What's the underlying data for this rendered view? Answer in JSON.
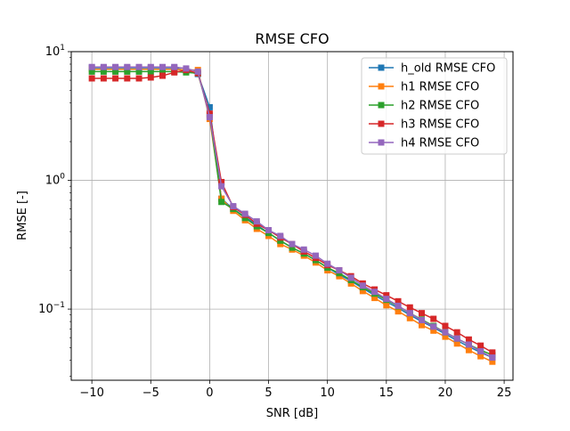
{
  "chart_data": {
    "type": "line",
    "title": "RMSE CFO",
    "xlabel": "SNR [dB]",
    "ylabel": "RMSE [-]",
    "xlim": [
      -11.75,
      25.75
    ],
    "ylim": [
      0.028,
      10
    ],
    "yscale": "log",
    "grid": true,
    "legend_position": "top-right",
    "x_ticks": [
      {
        "value": -10,
        "label": "−10"
      },
      {
        "value": -5,
        "label": "−5"
      },
      {
        "value": 0,
        "label": "0"
      },
      {
        "value": 5,
        "label": "5"
      },
      {
        "value": 10,
        "label": "10"
      },
      {
        "value": 15,
        "label": "15"
      },
      {
        "value": 20,
        "label": "20"
      },
      {
        "value": 25,
        "label": "25"
      }
    ],
    "y_ticks": [
      {
        "value": 0.1,
        "base": "10",
        "exp": "−1"
      },
      {
        "value": 1,
        "base": "10",
        "exp": "0"
      },
      {
        "value": 10,
        "base": "10",
        "exp": "1"
      }
    ],
    "x": [
      -10,
      -9,
      -8,
      -7,
      -6,
      -5,
      -4,
      -3,
      -2,
      -1,
      0,
      1,
      2,
      3,
      4,
      5,
      6,
      7,
      8,
      9,
      10,
      11,
      12,
      13,
      14,
      15,
      16,
      17,
      18,
      19,
      20,
      21,
      22,
      23,
      24
    ],
    "series": [
      {
        "name": "h_old RMSE CFO",
        "color": "#1f77b4",
        "values": [
          7.5,
          7.5,
          7.5,
          7.5,
          7.5,
          7.5,
          7.5,
          7.5,
          7.1,
          6.7,
          3.7,
          0.72,
          0.6,
          0.52,
          0.45,
          0.39,
          0.34,
          0.3,
          0.27,
          0.24,
          0.21,
          0.185,
          0.165,
          0.145,
          0.128,
          0.114,
          0.102,
          0.09,
          0.08,
          0.072,
          0.064,
          0.057,
          0.051,
          0.046,
          0.042
        ]
      },
      {
        "name": "h1 RMSE CFO",
        "color": "#ff7f0e",
        "values": [
          7.3,
          7.3,
          7.3,
          7.3,
          7.3,
          7.3,
          7.3,
          7.3,
          7.2,
          7.2,
          3.0,
          0.72,
          0.58,
          0.49,
          0.42,
          0.37,
          0.32,
          0.29,
          0.26,
          0.23,
          0.2,
          0.18,
          0.158,
          0.138,
          0.122,
          0.107,
          0.096,
          0.085,
          0.075,
          0.068,
          0.061,
          0.054,
          0.048,
          0.043,
          0.039
        ]
      },
      {
        "name": "h2 RMSE CFO",
        "color": "#2ca02c",
        "values": [
          7.0,
          7.0,
          7.0,
          7.0,
          7.0,
          7.0,
          7.0,
          7.0,
          6.9,
          6.8,
          3.2,
          0.68,
          0.6,
          0.51,
          0.44,
          0.39,
          0.34,
          0.3,
          0.27,
          0.24,
          0.21,
          0.19,
          0.168,
          0.148,
          0.132,
          0.118,
          0.105,
          0.093,
          0.083,
          0.074,
          0.066,
          0.059,
          0.053,
          0.048,
          0.044
        ]
      },
      {
        "name": "h3 RMSE CFO",
        "color": "#d62728",
        "values": [
          6.2,
          6.2,
          6.2,
          6.2,
          6.2,
          6.3,
          6.5,
          6.9,
          7.2,
          6.8,
          3.3,
          0.97,
          0.62,
          0.54,
          0.46,
          0.41,
          0.36,
          0.32,
          0.28,
          0.25,
          0.22,
          0.2,
          0.18,
          0.158,
          0.142,
          0.128,
          0.115,
          0.103,
          0.093,
          0.084,
          0.074,
          0.066,
          0.058,
          0.052,
          0.046
        ]
      },
      {
        "name": "h4 RMSE CFO",
        "color": "#9467bd",
        "values": [
          7.6,
          7.6,
          7.6,
          7.6,
          7.6,
          7.6,
          7.6,
          7.6,
          7.4,
          7.0,
          3.1,
          0.9,
          0.63,
          0.55,
          0.48,
          0.41,
          0.37,
          0.32,
          0.29,
          0.26,
          0.225,
          0.2,
          0.175,
          0.152,
          0.136,
          0.12,
          0.106,
          0.093,
          0.082,
          0.073,
          0.066,
          0.059,
          0.053,
          0.047,
          0.042
        ]
      }
    ]
  }
}
